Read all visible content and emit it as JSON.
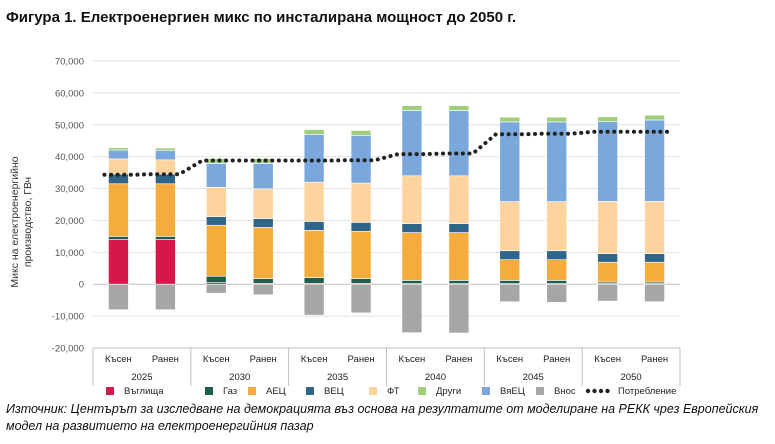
{
  "title": "Фигура 1. Електроенергиен микс по инсталирана мощност до 2050 г.",
  "source": "Източник: Центърът за изследване на демокрацията въз основа на резултатите от моделиране на РЕКК чрез Европейския модел на развитието на електроенергийния пазар",
  "chart_data": {
    "type": "bar",
    "stacked": true,
    "title": "",
    "ylabel_line1": "Микс на електроенергийно",
    "ylabel_line2": "производство, ГВч",
    "xlabel": "",
    "ylim": [
      -20000,
      70000
    ],
    "ytick_step": 10000,
    "ytick_labels": [
      "-20,000",
      "-10,000",
      "0",
      "10,000",
      "20,000",
      "30,000",
      "40,000",
      "50,000",
      "60,000",
      "70,000"
    ],
    "grid": true,
    "legend_position": "bottom",
    "years": [
      "2025",
      "2030",
      "2035",
      "2040",
      "2045",
      "2050"
    ],
    "scenarios": [
      "Късен",
      "Ранен"
    ],
    "categories": [
      "Късен 2025",
      "Ранен 2025",
      "Късен 2030",
      "Ранен 2030",
      "Късен 2035",
      "Ранен 2035",
      "Късен 2040",
      "Ранен 2040",
      "Късен 2045",
      "Ранен 2045",
      "Късен 2050",
      "Ранен 2050"
    ],
    "series": [
      {
        "name": "Въглища",
        "color": "#d4184a",
        "values": [
          14000,
          14000,
          500,
          300,
          300,
          300,
          200,
          200,
          200,
          200,
          200,
          200
        ]
      },
      {
        "name": "Газ",
        "color": "#1b5e4f",
        "values": [
          1000,
          1000,
          2000,
          1500,
          1800,
          1500,
          1000,
          1000,
          1000,
          1000,
          500,
          500
        ]
      },
      {
        "name": "АЕЦ",
        "color": "#f5ac3d",
        "values": [
          16500,
          16500,
          16000,
          16000,
          14800,
          14800,
          15000,
          15000,
          6500,
          6500,
          6200,
          6200
        ]
      },
      {
        "name": "ВЕЦ",
        "color": "#2e6589",
        "values": [
          3000,
          3000,
          2700,
          2800,
          2800,
          2800,
          2800,
          2800,
          2800,
          2800,
          2700,
          2700
        ]
      },
      {
        "name": "ФТ",
        "color": "#fdd49e",
        "values": [
          4800,
          4500,
          9200,
          9300,
          12300,
          12300,
          15000,
          15000,
          15400,
          15400,
          16400,
          16400
        ]
      },
      {
        "name": "ВяЕЦ",
        "color": "#7ba8dc",
        "values": [
          2800,
          3000,
          7500,
          8000,
          15000,
          15000,
          20500,
          20500,
          25000,
          25000,
          25000,
          25500
        ]
      },
      {
        "name": "Други",
        "color": "#9fcf7a",
        "values": [
          700,
          700,
          1500,
          1500,
          1500,
          1500,
          1500,
          1500,
          1500,
          1500,
          1500,
          1500
        ]
      },
      {
        "name": "Внос",
        "color": "#a6a6a6",
        "values": [
          -8000,
          -8000,
          -2800,
          -3300,
          -9700,
          -9000,
          -15200,
          -15300,
          -5500,
          -5700,
          -5300,
          -5500
        ]
      }
    ],
    "line": {
      "name": "Потребление",
      "color": "#222222",
      "values": [
        34300,
        34500,
        38800,
        38800,
        38800,
        38900,
        40800,
        41000,
        47000,
        47200,
        47800,
        47800
      ]
    }
  }
}
